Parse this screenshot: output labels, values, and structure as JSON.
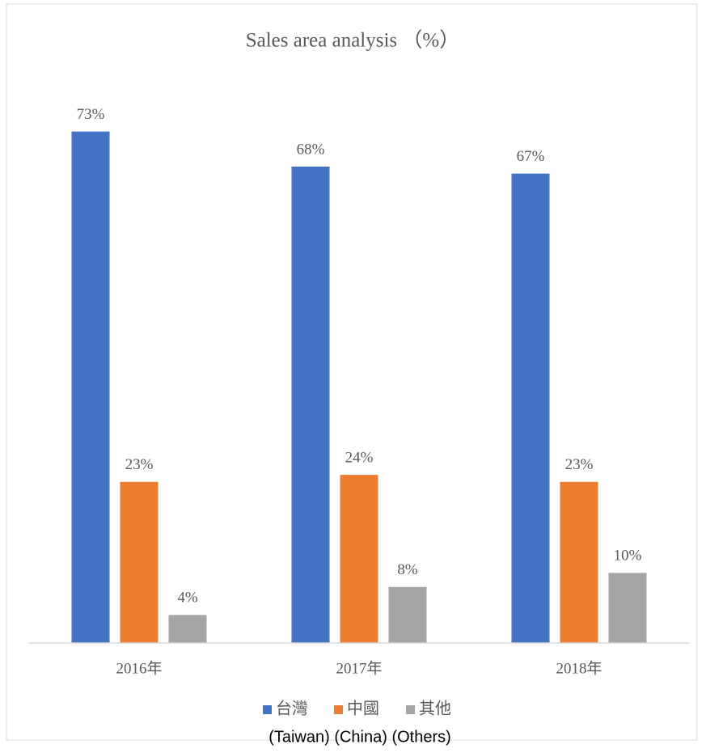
{
  "chart_data": {
    "type": "bar",
    "title": "Sales area analysis （%）",
    "categories": [
      "2016年",
      "2017年",
      "2018年"
    ],
    "series": [
      {
        "name": "台灣",
        "color": "#4472c4",
        "values": [
          73,
          68,
          67
        ],
        "value_labels": [
          "73%",
          "68%",
          "67%"
        ]
      },
      {
        "name": "中國",
        "color": "#ed7d31",
        "values": [
          23,
          24,
          23
        ],
        "value_labels": [
          "23%",
          "24%",
          "23%"
        ]
      },
      {
        "name": "其他",
        "color": "#a5a5a5",
        "values": [
          4,
          8,
          10
        ],
        "value_labels": [
          "4%",
          "8%",
          "10%"
        ]
      }
    ],
    "ylim": [
      0,
      80
    ],
    "legend": "bottom",
    "annotation": "(Taiwan) (China) (Others)"
  }
}
